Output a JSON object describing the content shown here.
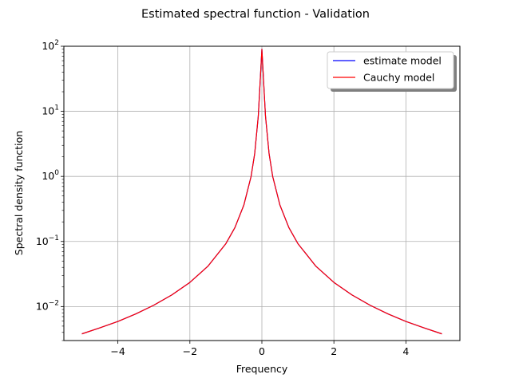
{
  "chart_data": {
    "type": "line",
    "title": "Estimated spectral function - Validation",
    "xlabel": "Frequency",
    "ylabel": "Spectral density function",
    "xlim": [
      -5.5,
      5.5
    ],
    "ylim": [
      0.003,
      100
    ],
    "yscale": "log",
    "grid": true,
    "legend_position": "top-right",
    "x_ticks": [
      -4,
      -2,
      0,
      2,
      4
    ],
    "x_tick_labels": [
      "−4",
      "−2",
      "0",
      "2",
      "4"
    ],
    "y_ticks": [
      0.01,
      0.1,
      1,
      10,
      100
    ],
    "y_tick_labels": [
      {
        "base": "10",
        "exp": "−2"
      },
      {
        "base": "10",
        "exp": "−1"
      },
      {
        "base": "10",
        "exp": "0"
      },
      {
        "base": "10",
        "exp": "1"
      },
      {
        "base": "10",
        "exp": "2"
      }
    ],
    "x": [
      -5.0,
      -4.5,
      -4.0,
      -3.5,
      -3.0,
      -2.5,
      -2.0,
      -1.5,
      -1.0,
      -0.75,
      -0.5,
      -0.3,
      -0.2,
      -0.1,
      -0.05,
      0.0,
      0.05,
      0.1,
      0.2,
      0.3,
      0.5,
      0.75,
      1.0,
      1.5,
      2.0,
      2.5,
      3.0,
      3.5,
      4.0,
      4.5,
      5.0
    ],
    "series": [
      {
        "name": "estimate model",
        "color": "#0000ff",
        "values": [
          0.0038,
          0.0047,
          0.0059,
          0.0077,
          0.0105,
          0.0151,
          0.0235,
          0.0416,
          0.0927,
          0.163,
          0.364,
          0.999,
          2.23,
          8.45,
          27.4,
          90.0,
          27.4,
          8.45,
          2.23,
          0.999,
          0.364,
          0.163,
          0.0927,
          0.0416,
          0.0235,
          0.0151,
          0.0105,
          0.0077,
          0.0059,
          0.0047,
          0.0038
        ]
      },
      {
        "name": "Cauchy model",
        "color": "#ff0000",
        "values": [
          0.0038,
          0.0047,
          0.0059,
          0.0077,
          0.0105,
          0.0151,
          0.0235,
          0.0416,
          0.0927,
          0.163,
          0.364,
          0.999,
          2.23,
          8.45,
          27.4,
          90.0,
          27.4,
          8.45,
          2.23,
          0.999,
          0.364,
          0.163,
          0.0927,
          0.0416,
          0.0235,
          0.0151,
          0.0105,
          0.0077,
          0.0059,
          0.0047,
          0.0038
        ]
      }
    ]
  }
}
